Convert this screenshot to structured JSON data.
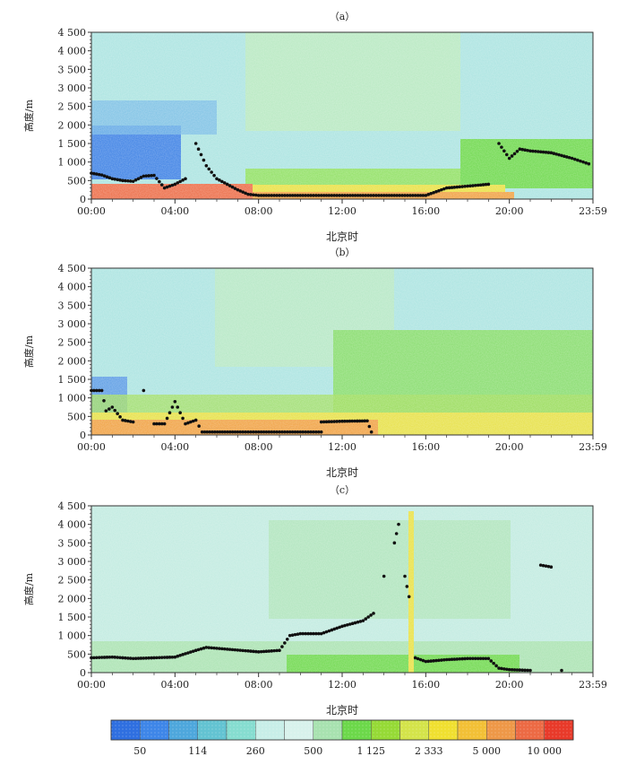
{
  "chart_data": [
    {
      "type": "heatmap",
      "panel_label": "（a）",
      "xlabel": "北京时",
      "ylabel": "高度/m",
      "x_tick_labels": [
        "00:00",
        "04:00",
        "08:00",
        "12:00",
        "16:00",
        "20:00",
        "23:59"
      ],
      "y_tick_labels": [
        "0",
        "500",
        "1 000",
        "1 500",
        "2 000",
        "2 500",
        "3 000",
        "3 500",
        "4 000",
        "4 500"
      ],
      "ylim": [
        0,
        4500
      ],
      "xlim_hours": [
        0,
        24
      ],
      "boundary_layer_heights": [
        {
          "hour": 0.0,
          "height": 700
        },
        {
          "hour": 0.5,
          "height": 650
        },
        {
          "hour": 1.0,
          "height": 550
        },
        {
          "hour": 1.5,
          "height": 500
        },
        {
          "hour": 2.0,
          "height": 480
        },
        {
          "hour": 2.5,
          "height": 620
        },
        {
          "hour": 3.0,
          "height": 640
        },
        {
          "hour": 3.5,
          "height": 300
        },
        {
          "hour": 4.0,
          "height": 400
        },
        {
          "hour": 4.5,
          "height": 550
        },
        {
          "hour": 5.0,
          "height": 1500
        },
        {
          "hour": 5.5,
          "height": 900
        },
        {
          "hour": 6.0,
          "height": 550
        },
        {
          "hour": 6.5,
          "height": 400
        },
        {
          "hour": 7.0,
          "height": 250
        },
        {
          "hour": 7.5,
          "height": 130
        },
        {
          "hour": 8.0,
          "height": 100
        },
        {
          "hour": 10.0,
          "height": 100
        },
        {
          "hour": 12.0,
          "height": 100
        },
        {
          "hour": 14.0,
          "height": 100
        },
        {
          "hour": 16.0,
          "height": 100
        },
        {
          "hour": 17.0,
          "height": 300
        },
        {
          "hour": 18.0,
          "height": 350
        },
        {
          "hour": 19.0,
          "height": 400
        },
        {
          "hour": 19.5,
          "height": 1500
        },
        {
          "hour": 20.0,
          "height": 1100
        },
        {
          "hour": 20.5,
          "height": 1350
        },
        {
          "hour": 21.0,
          "height": 1300
        },
        {
          "hour": 22.0,
          "height": 1250
        },
        {
          "hour": 23.0,
          "height": 1100
        },
        {
          "hour": 23.8,
          "height": 950
        }
      ]
    },
    {
      "type": "heatmap",
      "panel_label": "（b）",
      "xlabel": "北京时",
      "ylabel": "高度/m",
      "x_tick_labels": [
        "00:00",
        "04:00",
        "08:00",
        "12:00",
        "16:00",
        "20:00",
        "23:59"
      ],
      "y_tick_labels": [
        "0",
        "500",
        "1 000",
        "1 500",
        "2 000",
        "2 500",
        "3 000",
        "3 500",
        "4 000",
        "4 500"
      ],
      "ylim": [
        0,
        4500
      ],
      "xlim_hours": [
        0,
        24
      ],
      "boundary_layer_heights": [
        {
          "hour": 0.0,
          "height": 1200
        },
        {
          "hour": 0.5,
          "height": 1200
        },
        {
          "hour": 0.7,
          "height": 650
        },
        {
          "hour": 1.0,
          "height": 750
        },
        {
          "hour": 1.5,
          "height": 400
        },
        {
          "hour": 2.0,
          "height": 350
        },
        {
          "hour": 2.5,
          "height": 1200
        },
        {
          "hour": 3.0,
          "height": 300
        },
        {
          "hour": 3.5,
          "height": 300
        },
        {
          "hour": 4.0,
          "height": 900
        },
        {
          "hour": 4.5,
          "height": 300
        },
        {
          "hour": 5.0,
          "height": 400
        },
        {
          "hour": 5.3,
          "height": 80
        },
        {
          "hour": 7.0,
          "height": 80
        },
        {
          "hour": 9.0,
          "height": 80
        },
        {
          "hour": 11.0,
          "height": 80
        },
        {
          "hour": 11.0,
          "height": 350
        },
        {
          "hour": 12.0,
          "height": 370
        },
        {
          "hour": 13.2,
          "height": 380
        },
        {
          "hour": 13.4,
          "height": 80
        }
      ]
    },
    {
      "type": "heatmap",
      "panel_label": "（c）",
      "xlabel": "北京时",
      "ylabel": "高度/m",
      "x_tick_labels": [
        "00:00",
        "04:00",
        "08:00",
        "12:00",
        "16:00",
        "20:00",
        "23:59"
      ],
      "y_tick_labels": [
        "0",
        "500",
        "1 000",
        "1 500",
        "2 000",
        "2 500",
        "3 000",
        "3 500",
        "4 000",
        "4 500"
      ],
      "ylim": [
        0,
        4500
      ],
      "xlim_hours": [
        0,
        24
      ],
      "boundary_layer_heights": [
        {
          "hour": 0.0,
          "height": 400
        },
        {
          "hour": 1.0,
          "height": 420
        },
        {
          "hour": 2.0,
          "height": 380
        },
        {
          "hour": 3.0,
          "height": 400
        },
        {
          "hour": 4.0,
          "height": 420
        },
        {
          "hour": 5.0,
          "height": 600
        },
        {
          "hour": 5.5,
          "height": 680
        },
        {
          "hour": 8.0,
          "height": 560
        },
        {
          "hour": 9.0,
          "height": 600
        },
        {
          "hour": 9.5,
          "height": 1000
        },
        {
          "hour": 10.0,
          "height": 1050
        },
        {
          "hour": 11.0,
          "height": 1050
        },
        {
          "hour": 11.5,
          "height": 1150
        },
        {
          "hour": 12.0,
          "height": 1250
        },
        {
          "hour": 13.0,
          "height": 1400
        },
        {
          "hour": 13.5,
          "height": 1600
        },
        {
          "hour": 14.0,
          "height": 2600
        },
        {
          "hour": 14.5,
          "height": 3500
        },
        {
          "hour": 14.7,
          "height": 4000
        },
        {
          "hour": 15.0,
          "height": 2600
        },
        {
          "hour": 15.2,
          "height": 2050
        },
        {
          "hour": 15.5,
          "height": 400
        },
        {
          "hour": 16.0,
          "height": 300
        },
        {
          "hour": 17.0,
          "height": 350
        },
        {
          "hour": 18.0,
          "height": 380
        },
        {
          "hour": 19.0,
          "height": 380
        },
        {
          "hour": 19.5,
          "height": 120
        },
        {
          "hour": 20.0,
          "height": 80
        },
        {
          "hour": 21.0,
          "height": 60
        },
        {
          "hour": 21.5,
          "height": 2900
        },
        {
          "hour": 22.0,
          "height": 2850
        },
        {
          "hour": 22.5,
          "height": 60
        }
      ]
    }
  ],
  "colorbar": {
    "colors": [
      "#2f6fe0",
      "#3e86e8",
      "#4ea7dc",
      "#63c3d2",
      "#86ddd0",
      "#c8eee8",
      "#d8f2ec",
      "#a8e2b0",
      "#6cd84a",
      "#96da36",
      "#d4e44a",
      "#f0e030",
      "#f2c036",
      "#ee9848",
      "#ec6a44",
      "#e83a2a"
    ],
    "labels": [
      "50",
      "114",
      "260",
      "500",
      "1 125",
      "2 333",
      "5 000",
      "10 000"
    ]
  }
}
